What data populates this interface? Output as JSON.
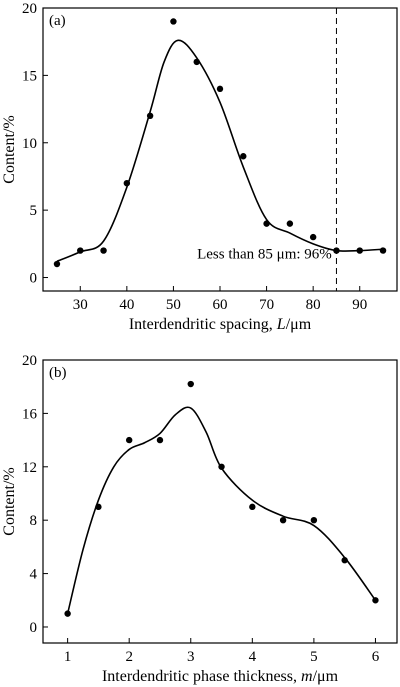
{
  "chart_data": [
    {
      "type": "scatter",
      "panel_label": "(a)",
      "xlabel": "Interdendritic spacing, L/μm",
      "xlabel_parts": [
        "Interdendritic spacing, ",
        "L",
        "/μm"
      ],
      "ylabel": "Content/%",
      "xlim": [
        22,
        98
      ],
      "ylim": [
        -1,
        20
      ],
      "xticks": [
        30,
        40,
        50,
        60,
        70,
        80,
        90
      ],
      "yticks": [
        0,
        5,
        10,
        15,
        20
      ],
      "series": [
        {
          "x": [
            25,
            30,
            35,
            40,
            45,
            50,
            55,
            60,
            65,
            70,
            75,
            80,
            85,
            90,
            95
          ],
          "y": [
            1,
            2,
            2,
            7,
            12,
            19,
            16,
            14,
            9,
            4,
            4,
            3,
            2,
            2,
            2
          ]
        }
      ],
      "fit_curve": {
        "x": [
          25,
          30,
          35,
          40,
          45,
          48,
          51,
          55,
          60,
          65,
          70,
          75,
          80,
          85,
          90,
          95
        ],
        "y": [
          1.2,
          1.9,
          2.7,
          6.7,
          12.3,
          16.0,
          17.6,
          16.3,
          13.0,
          8.2,
          4.3,
          3.3,
          2.5,
          2.0,
          2.0,
          2.1
        ]
      },
      "vline": {
        "x": 85,
        "style": "dashed"
      },
      "annotation": {
        "text": "Less than 85 μm: 96%",
        "x": 84,
        "y": 1.4
      },
      "grid": false
    },
    {
      "type": "scatter",
      "panel_label": "(b)",
      "xlabel": "Interdendritic phase thickness, m/μm",
      "xlabel_parts": [
        "Interdendritic phase thickness, ",
        "m",
        "/μm"
      ],
      "ylabel": "Content/%",
      "xlim": [
        0.6,
        6.35
      ],
      "ylim": [
        -1.2,
        20
      ],
      "xticks": [
        1,
        2,
        3,
        4,
        5,
        6
      ],
      "yticks": [
        0,
        4,
        8,
        12,
        16,
        20
      ],
      "series": [
        {
          "x": [
            1,
            1.5,
            2,
            2.5,
            3,
            3.5,
            4,
            4.5,
            5,
            5.5,
            6
          ],
          "y": [
            1,
            9,
            14,
            14,
            18.2,
            12,
            9,
            8,
            8,
            5,
            2
          ]
        }
      ],
      "fit_curve": {
        "x": [
          1,
          1.25,
          1.5,
          1.75,
          2,
          2.25,
          2.5,
          2.75,
          3,
          3.25,
          3.5,
          4,
          4.5,
          5,
          5.5,
          6
        ],
        "y": [
          1.0,
          5.8,
          9.5,
          12.0,
          13.3,
          13.8,
          14.5,
          15.9,
          16.4,
          14.6,
          11.9,
          9.5,
          8.3,
          7.6,
          5.2,
          2.0
        ]
      },
      "grid": false
    }
  ]
}
